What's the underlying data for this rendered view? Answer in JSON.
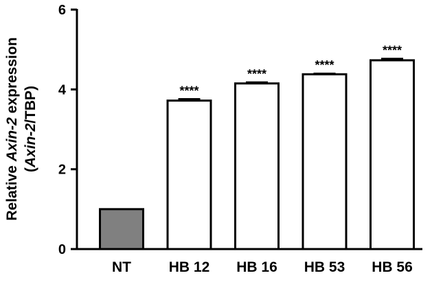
{
  "chart_data": {
    "type": "bar",
    "y_label_lines": [
      [
        {
          "text": "Relative ",
          "italic": false
        },
        {
          "text": "Axin-2",
          "italic": true
        },
        {
          "text": " expression",
          "italic": false
        }
      ],
      [
        {
          "text": "(",
          "italic": false
        },
        {
          "text": "Axin-2",
          "italic": true
        },
        {
          "text": "/TBP)",
          "italic": false
        }
      ]
    ],
    "categories": [
      "NT",
      "HB 12",
      "HB 16",
      "HB 53",
      "HB 56"
    ],
    "values": [
      1.0,
      3.72,
      4.15,
      4.38,
      4.73
    ],
    "errors": [
      0,
      0.04,
      0.03,
      0.02,
      0.04
    ],
    "colors": [
      "#808080",
      "#ffffff",
      "#ffffff",
      "#ffffff",
      "#ffffff"
    ],
    "annotations": [
      null,
      "****",
      "****",
      "****",
      "****"
    ],
    "ylim": [
      0,
      6
    ],
    "yticks": [
      0,
      2,
      4,
      6
    ]
  }
}
